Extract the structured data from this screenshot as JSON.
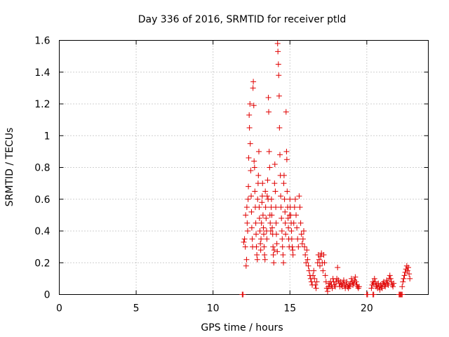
{
  "chart_data": {
    "type": "scatter",
    "title": "Day 336 of 2016, SRMTID for receiver ptld",
    "xlabel": "GPS time / hours",
    "ylabel": "SRMTID / TECUs",
    "xlim": [
      0,
      24
    ],
    "ylim": [
      0,
      1.6
    ],
    "xticks": [
      0,
      5,
      10,
      15,
      20
    ],
    "yticks": [
      0,
      0.2,
      0.4,
      0.6,
      0.8,
      1,
      1.2,
      1.4,
      1.6
    ],
    "xtick_labels": [
      "0",
      "5",
      "10",
      "15",
      "20"
    ],
    "ytick_labels": [
      "0",
      "0.2",
      "0.4",
      "0.6",
      "0.8",
      "1",
      "1.2",
      "1.4",
      "1.6"
    ],
    "grid": true,
    "marker": "+",
    "color": "#e00000",
    "series": [
      {
        "name": "SRMTID",
        "points": [
          [
            11.9,
            0.0
          ],
          [
            11.95,
            0.0
          ],
          [
            12.0,
            0.33
          ],
          [
            12.05,
            0.35
          ],
          [
            12.1,
            0.3
          ],
          [
            12.12,
            0.5
          ],
          [
            12.15,
            0.18
          ],
          [
            12.18,
            0.22
          ],
          [
            12.2,
            0.55
          ],
          [
            12.22,
            0.45
          ],
          [
            12.25,
            0.4
          ],
          [
            12.28,
            0.6
          ],
          [
            12.3,
            0.68
          ],
          [
            12.32,
            0.86
          ],
          [
            12.35,
            1.13
          ],
          [
            12.37,
            1.05
          ],
          [
            12.4,
            1.2
          ],
          [
            12.42,
            0.95
          ],
          [
            12.45,
            0.78
          ],
          [
            12.48,
            0.62
          ],
          [
            12.5,
            0.52
          ],
          [
            12.52,
            0.42
          ],
          [
            12.55,
            0.35
          ],
          [
            12.57,
            0.3
          ],
          [
            12.6,
            1.3
          ],
          [
            12.62,
            1.34
          ],
          [
            12.65,
            1.19
          ],
          [
            12.67,
            0.84
          ],
          [
            12.7,
            0.8
          ],
          [
            12.72,
            0.65
          ],
          [
            12.75,
            0.55
          ],
          [
            12.78,
            0.45
          ],
          [
            12.8,
            0.38
          ],
          [
            12.82,
            0.3
          ],
          [
            12.85,
            0.25
          ],
          [
            12.88,
            0.22
          ],
          [
            12.9,
            0.6
          ],
          [
            12.93,
            0.7
          ],
          [
            12.95,
            0.75
          ],
          [
            12.98,
            0.9
          ],
          [
            13.0,
            0.55
          ],
          [
            13.02,
            0.48
          ],
          [
            13.05,
            0.4
          ],
          [
            13.08,
            0.32
          ],
          [
            13.1,
            0.28
          ],
          [
            13.12,
            0.35
          ],
          [
            13.15,
            0.45
          ],
          [
            13.18,
            0.58
          ],
          [
            13.2,
            0.62
          ],
          [
            13.22,
            0.7
          ],
          [
            13.25,
            0.5
          ],
          [
            13.28,
            0.42
          ],
          [
            13.3,
            0.38
          ],
          [
            13.32,
            0.3
          ],
          [
            13.35,
            0.25
          ],
          [
            13.38,
            0.22
          ],
          [
            13.4,
            0.65
          ],
          [
            13.42,
            0.55
          ],
          [
            13.45,
            0.48
          ],
          [
            13.48,
            0.4
          ],
          [
            13.5,
            0.35
          ],
          [
            13.52,
            0.62
          ],
          [
            13.55,
            0.72
          ],
          [
            13.58,
            0.6
          ],
          [
            13.6,
            1.24
          ],
          [
            13.62,
            1.15
          ],
          [
            13.65,
            0.9
          ],
          [
            13.68,
            0.8
          ],
          [
            13.7,
            0.5
          ],
          [
            13.72,
            0.45
          ],
          [
            13.75,
            0.4
          ],
          [
            13.78,
            0.55
          ],
          [
            13.8,
            0.6
          ],
          [
            13.82,
            0.5
          ],
          [
            13.85,
            0.42
          ],
          [
            13.88,
            0.38
          ],
          [
            13.9,
            0.3
          ],
          [
            13.92,
            0.25
          ],
          [
            13.95,
            0.2
          ],
          [
            13.98,
            0.28
          ],
          [
            14.0,
            0.7
          ],
          [
            14.02,
            0.82
          ],
          [
            14.05,
            0.65
          ],
          [
            14.08,
            0.55
          ],
          [
            14.1,
            0.45
          ],
          [
            14.12,
            0.38
          ],
          [
            14.15,
            0.32
          ],
          [
            14.18,
            0.27
          ],
          [
            14.2,
            1.58
          ],
          [
            14.22,
            1.53
          ],
          [
            14.25,
            1.45
          ],
          [
            14.27,
            1.38
          ],
          [
            14.3,
            1.25
          ],
          [
            14.32,
            1.05
          ],
          [
            14.35,
            0.88
          ],
          [
            14.38,
            0.75
          ],
          [
            14.4,
            0.62
          ],
          [
            14.42,
            0.55
          ],
          [
            14.45,
            0.48
          ],
          [
            14.48,
            0.4
          ],
          [
            14.5,
            0.35
          ],
          [
            14.52,
            0.3
          ],
          [
            14.55,
            0.25
          ],
          [
            14.58,
            0.2
          ],
          [
            14.6,
            0.7
          ],
          [
            14.62,
            0.75
          ],
          [
            14.65,
            0.6
          ],
          [
            14.68,
            0.52
          ],
          [
            14.7,
            0.45
          ],
          [
            14.72,
            0.38
          ],
          [
            14.75,
            1.15
          ],
          [
            14.78,
            0.9
          ],
          [
            14.8,
            0.85
          ],
          [
            14.82,
            0.65
          ],
          [
            14.85,
            0.55
          ],
          [
            14.88,
            0.48
          ],
          [
            14.9,
            0.42
          ],
          [
            14.92,
            0.35
          ],
          [
            14.95,
            0.3
          ],
          [
            14.98,
            0.5
          ],
          [
            15.0,
            0.6
          ],
          [
            15.02,
            0.55
          ],
          [
            15.05,
            0.5
          ],
          [
            15.08,
            0.45
          ],
          [
            15.1,
            0.4
          ],
          [
            15.12,
            0.35
          ],
          [
            15.15,
            0.3
          ],
          [
            15.18,
            0.28
          ],
          [
            15.2,
            0.25
          ],
          [
            15.25,
            0.45
          ],
          [
            15.3,
            0.55
          ],
          [
            15.35,
            0.6
          ],
          [
            15.4,
            0.5
          ],
          [
            15.45,
            0.42
          ],
          [
            15.5,
            0.35
          ],
          [
            15.55,
            0.3
          ],
          [
            15.6,
            0.62
          ],
          [
            15.65,
            0.55
          ],
          [
            15.7,
            0.45
          ],
          [
            15.75,
            0.38
          ],
          [
            15.8,
            0.32
          ],
          [
            15.85,
            0.35
          ],
          [
            15.9,
            0.4
          ],
          [
            15.95,
            0.3
          ],
          [
            16.0,
            0.25
          ],
          [
            16.05,
            0.2
          ],
          [
            16.1,
            0.28
          ],
          [
            16.15,
            0.22
          ],
          [
            16.2,
            0.18
          ],
          [
            16.25,
            0.15
          ],
          [
            16.3,
            0.12
          ],
          [
            16.35,
            0.1
          ],
          [
            16.4,
            0.08
          ],
          [
            16.45,
            0.06
          ],
          [
            16.5,
            0.12
          ],
          [
            16.55,
            0.15
          ],
          [
            16.6,
            0.1
          ],
          [
            16.65,
            0.06
          ],
          [
            16.7,
            0.04
          ],
          [
            16.75,
            0.08
          ],
          [
            16.8,
            0.2
          ],
          [
            16.85,
            0.25
          ],
          [
            16.9,
            0.22
          ],
          [
            16.95,
            0.18
          ],
          [
            17.0,
            0.24
          ],
          [
            17.05,
            0.26
          ],
          [
            17.1,
            0.2
          ],
          [
            17.15,
            0.15
          ],
          [
            17.2,
            0.25
          ],
          [
            17.25,
            0.2
          ],
          [
            17.3,
            0.12
          ],
          [
            17.35,
            0.08
          ],
          [
            17.4,
            0.04
          ],
          [
            17.45,
            0.02
          ],
          [
            17.5,
            0.05
          ],
          [
            17.55,
            0.07
          ],
          [
            17.6,
            0.05
          ],
          [
            17.65,
            0.08
          ],
          [
            17.7,
            0.06
          ],
          [
            17.75,
            0.04
          ],
          [
            17.8,
            0.1
          ],
          [
            17.85,
            0.08
          ],
          [
            17.9,
            0.06
          ],
          [
            17.95,
            0.05
          ],
          [
            18.0,
            0.08
          ],
          [
            18.05,
            0.1
          ],
          [
            18.1,
            0.17
          ],
          [
            18.15,
            0.09
          ],
          [
            18.2,
            0.07
          ],
          [
            18.25,
            0.05
          ],
          [
            18.3,
            0.08
          ],
          [
            18.35,
            0.06
          ],
          [
            18.4,
            0.05
          ],
          [
            18.45,
            0.07
          ],
          [
            18.5,
            0.09
          ],
          [
            18.55,
            0.06
          ],
          [
            18.6,
            0.04
          ],
          [
            18.65,
            0.06
          ],
          [
            18.7,
            0.08
          ],
          [
            18.75,
            0.05
          ],
          [
            18.8,
            0.04
          ],
          [
            18.85,
            0.06
          ],
          [
            18.9,
            0.05
          ],
          [
            18.95,
            0.07
          ],
          [
            19.0,
            0.1
          ],
          [
            19.05,
            0.08
          ],
          [
            19.1,
            0.06
          ],
          [
            19.15,
            0.07
          ],
          [
            19.2,
            0.09
          ],
          [
            19.25,
            0.11
          ],
          [
            19.3,
            0.08
          ],
          [
            19.35,
            0.06
          ],
          [
            19.4,
            0.05
          ],
          [
            19.45,
            0.04
          ],
          [
            19.5,
            0.05
          ],
          [
            20.0,
            0.0
          ],
          [
            20.05,
            0.0
          ],
          [
            20.4,
            0.0
          ],
          [
            20.45,
            0.0
          ],
          [
            20.3,
            0.04
          ],
          [
            20.35,
            0.06
          ],
          [
            20.4,
            0.08
          ],
          [
            20.45,
            0.07
          ],
          [
            20.5,
            0.1
          ],
          [
            20.55,
            0.08
          ],
          [
            20.6,
            0.05
          ],
          [
            20.65,
            0.06
          ],
          [
            20.7,
            0.04
          ],
          [
            20.75,
            0.07
          ],
          [
            20.8,
            0.05
          ],
          [
            20.85,
            0.03
          ],
          [
            20.9,
            0.06
          ],
          [
            20.95,
            0.05
          ],
          [
            21.0,
            0.04
          ],
          [
            21.05,
            0.07
          ],
          [
            21.1,
            0.08
          ],
          [
            21.15,
            0.06
          ],
          [
            21.2,
            0.05
          ],
          [
            21.25,
            0.07
          ],
          [
            21.3,
            0.09
          ],
          [
            21.35,
            0.07
          ],
          [
            21.4,
            0.06
          ],
          [
            21.45,
            0.1
          ],
          [
            21.5,
            0.12
          ],
          [
            21.55,
            0.1
          ],
          [
            21.6,
            0.08
          ],
          [
            21.65,
            0.06
          ],
          [
            21.7,
            0.05
          ],
          [
            21.75,
            0.07
          ],
          [
            22.1,
            0.0
          ],
          [
            22.15,
            0.0
          ],
          [
            22.2,
            0.0
          ],
          [
            22.25,
            0.0
          ],
          [
            22.3,
            0.0
          ],
          [
            22.3,
            0.05
          ],
          [
            22.35,
            0.08
          ],
          [
            22.4,
            0.1
          ],
          [
            22.45,
            0.12
          ],
          [
            22.5,
            0.14
          ],
          [
            22.55,
            0.16
          ],
          [
            22.6,
            0.18
          ],
          [
            22.65,
            0.15
          ],
          [
            22.7,
            0.17
          ],
          [
            22.75,
            0.13
          ],
          [
            22.8,
            0.1
          ]
        ]
      }
    ]
  }
}
